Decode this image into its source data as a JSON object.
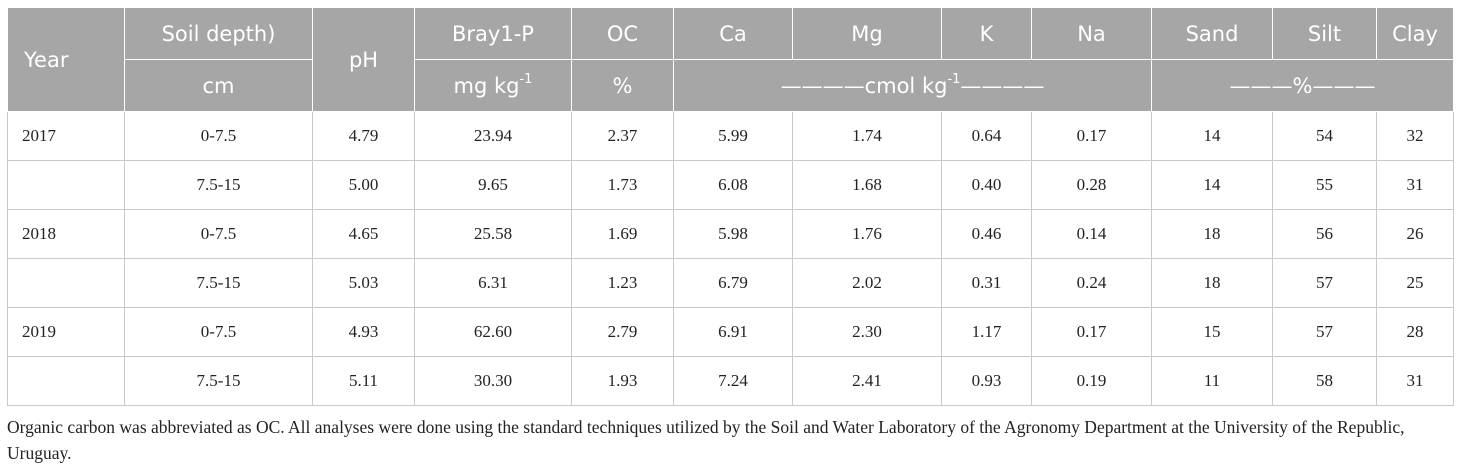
{
  "header": {
    "year": "Year",
    "soil_depth": "Soil depth)",
    "ph": "pH",
    "bray": "Bray1-P",
    "oc": "OC",
    "ca": "Ca",
    "mg": "Mg",
    "k": "K",
    "na": "Na",
    "sand": "Sand",
    "silt": "Silt",
    "clay": "Clay",
    "depth_unit": "cm",
    "bray_unit": "mg kg",
    "bray_unit_exp": "-1",
    "oc_unit": "%",
    "cation_unit_prefix": "————cmol kg",
    "cation_unit_exp": "-1",
    "cation_unit_suffix": "————",
    "texture_unit": "———%———"
  },
  "rows": [
    {
      "year": "2017",
      "depth": "0-7.5",
      "ph": "4.79",
      "bray": "23.94",
      "oc": "2.37",
      "ca": "5.99",
      "mg": "1.74",
      "k": "0.64",
      "na": "0.17",
      "sand": "14",
      "silt": "54",
      "clay": "32"
    },
    {
      "year": "",
      "depth": "7.5-15",
      "ph": "5.00",
      "bray": "9.65",
      "oc": "1.73",
      "ca": "6.08",
      "mg": "1.68",
      "k": "0.40",
      "na": "0.28",
      "sand": "14",
      "silt": "55",
      "clay": "31"
    },
    {
      "year": "2018",
      "depth": "0-7.5",
      "ph": "4.65",
      "bray": "25.58",
      "oc": "1.69",
      "ca": "5.98",
      "mg": "1.76",
      "k": "0.46",
      "na": "0.14",
      "sand": "18",
      "silt": "56",
      "clay": "26"
    },
    {
      "year": "",
      "depth": "7.5-15",
      "ph": "5.03",
      "bray": "6.31",
      "oc": "1.23",
      "ca": "6.79",
      "mg": "2.02",
      "k": "0.31",
      "na": "0.24",
      "sand": "18",
      "silt": "57",
      "clay": "25"
    },
    {
      "year": "2019",
      "depth": "0-7.5",
      "ph": "4.93",
      "bray": "62.60",
      "oc": "2.79",
      "ca": "6.91",
      "mg": "2.30",
      "k": "1.17",
      "na": "0.17",
      "sand": "15",
      "silt": "57",
      "clay": "28"
    },
    {
      "year": "",
      "depth": "7.5-15",
      "ph": "5.11",
      "bray": "30.30",
      "oc": "1.93",
      "ca": "7.24",
      "mg": "2.41",
      "k": "0.93",
      "na": "0.19",
      "sand": "11",
      "silt": "58",
      "clay": "31"
    }
  ],
  "footnote": "Organic carbon was abbreviated as OC. All analyses were done using the standard techniques utilized by the Soil and Water Laboratory of the Agronomy Department at the University of the Republic, Uruguay."
}
